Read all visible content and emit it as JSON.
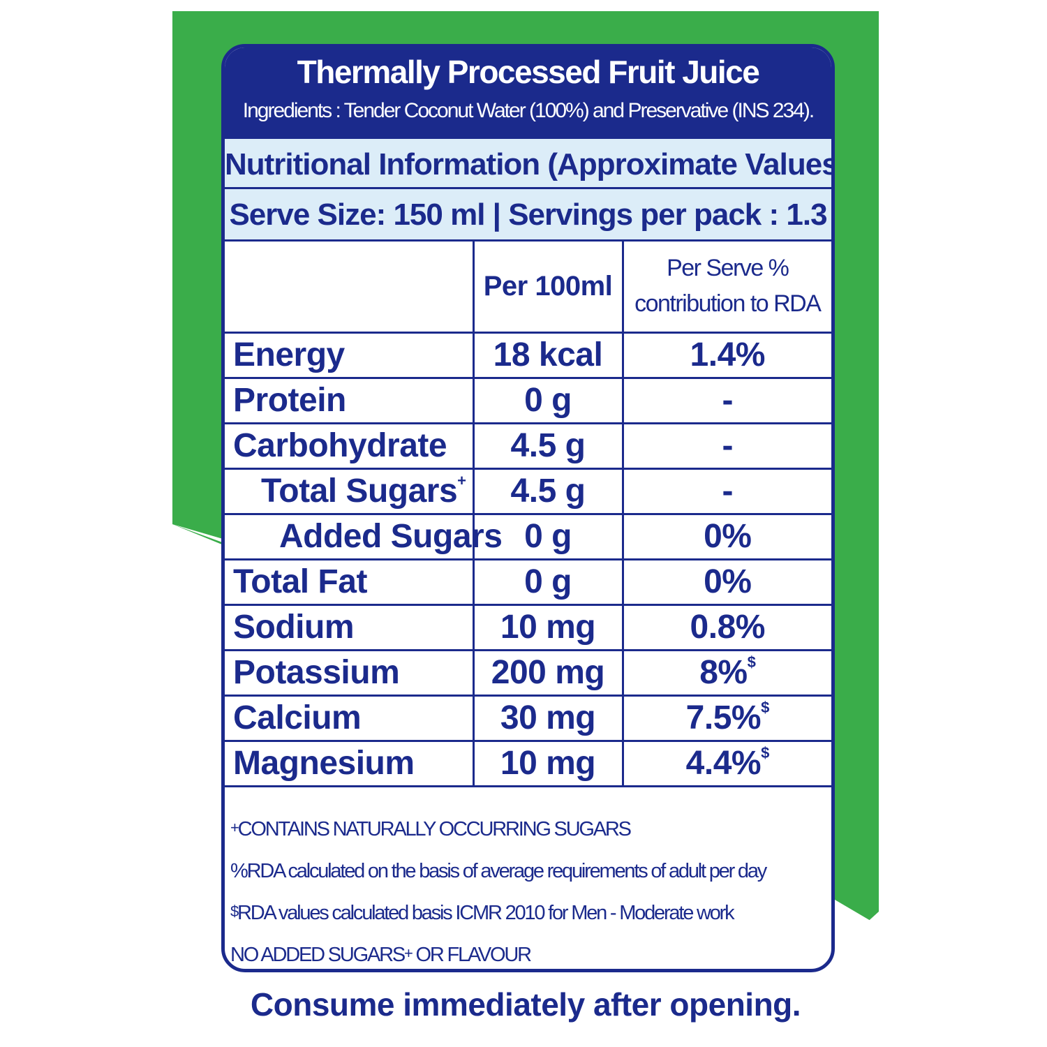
{
  "colors": {
    "navy": "#1b2a8c",
    "green": "#3aad4a",
    "light_blue": "#dcedf8"
  },
  "header": {
    "title": "Thermally Processed Fruit Juice",
    "ingredients": "Ingredients : Tender Coconut Water (100%) and Preservative (INS 234)."
  },
  "info_title": "Nutritional Information (Approximate Values)",
  "serving": "Serve Size: 150 ml | Servings per pack : 1.3",
  "table": {
    "col_per100": "Per 100ml",
    "col_rda_line1": "Per Serve %",
    "col_rda_line2": "contribution to RDA",
    "rows": [
      {
        "name": "Energy",
        "per100": "18 kcal",
        "rda": "1.4%"
      },
      {
        "name": "Protein",
        "per100": "0 g",
        "rda": "-"
      },
      {
        "name": "Carbohydrate",
        "per100": "4.5 g",
        "rda": "-"
      },
      {
        "name": "Total Sugars",
        "mark": "+",
        "per100": "4.5 g",
        "rda": "-"
      },
      {
        "name": "Added Sugars",
        "per100": "0 g",
        "rda": "0%"
      },
      {
        "name": "Total Fat",
        "per100": "0 g",
        "rda": "0%"
      },
      {
        "name": "Sodium",
        "per100": "10 mg",
        "rda": "0.8%"
      },
      {
        "name": "Potassium",
        "per100": "200 mg",
        "rda": "8%",
        "rda_mark": "$"
      },
      {
        "name": "Calcium",
        "per100": "30 mg",
        "rda": "7.5%",
        "rda_mark": "$"
      },
      {
        "name": "Magnesium",
        "per100": "10 mg",
        "rda": "4.4%",
        "rda_mark": "$"
      }
    ]
  },
  "notes": {
    "line1_mark": "+",
    "line1": "CONTAINS NATURALLY OCCURRING SUGARS",
    "line2": "%RDA calculated on the basis of average requirements of adult per day",
    "line3_mark": "$",
    "line3": "RDA values calculated basis ICMR 2010 for Men - Moderate work",
    "line4a": "NO ADDED SUGARS",
    "line4_mark": "+",
    "line4b": " OR FLAVOUR"
  },
  "footer": "Consume immediately after opening."
}
